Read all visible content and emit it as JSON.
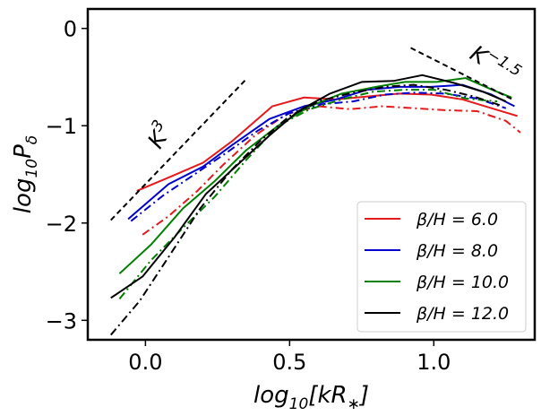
{
  "chart_data": {
    "type": "line",
    "title": "",
    "xlabel": "log10[kR*]",
    "ylabel": "log10Pδ",
    "xlim": [
      -0.2,
      1.35
    ],
    "ylim": [
      -3.2,
      0.2
    ],
    "xticks": [
      0.0,
      0.5,
      1.0
    ],
    "xtick_labels": [
      "0.0",
      "0.5",
      "1.0"
    ],
    "yticks": [
      0,
      -1,
      -2,
      -3
    ],
    "ytick_labels": [
      "0",
      "−1",
      "−2",
      "−3"
    ],
    "grid": false,
    "legend_position": "lower-right",
    "legend": [
      {
        "label": "β/H = 6.0",
        "color": "#e41a1c"
      },
      {
        "label": "β/H = 8.0",
        "color": "#0000cc"
      },
      {
        "label": "β/H = 10.0",
        "color": "#007f00"
      },
      {
        "label": "β/H = 12.0",
        "color": "#000000"
      }
    ],
    "annotations": [
      {
        "text": "K",
        "superscript": "3",
        "x": 0.05,
        "y": -1.25
      },
      {
        "text": "K",
        "superscript": "−1.5",
        "x": 1.12,
        "y": -0.3
      }
    ],
    "reference_lines": [
      {
        "name": "K^3",
        "style": "dashed",
        "color": "#000000",
        "x": [
          -0.12,
          0.35
        ],
        "y": [
          -1.97,
          -0.52
        ]
      },
      {
        "name": "K^-1.5",
        "style": "dashed",
        "color": "#000000",
        "x": [
          0.92,
          1.28
        ],
        "y": [
          -0.2,
          -0.74
        ]
      }
    ],
    "series": [
      {
        "name": "β/H = 6.0",
        "style": "solid",
        "color": "#e41a1c",
        "x": [
          -0.03,
          0.09,
          0.2,
          0.3,
          0.44,
          0.55,
          0.66,
          0.77,
          0.88,
          0.99,
          1.1,
          1.2,
          1.29
        ],
        "y": [
          -1.67,
          -1.52,
          -1.38,
          -1.16,
          -0.8,
          -0.71,
          -0.73,
          -0.7,
          -0.67,
          -0.68,
          -0.73,
          -0.82,
          -0.9
        ]
      },
      {
        "name": "β/H = 6.0 (alt)",
        "style": "dashdot",
        "color": "#e41a1c",
        "x": [
          -0.01,
          0.08,
          0.18,
          0.27,
          0.38,
          0.49,
          0.6,
          0.71,
          0.82,
          0.93,
          1.04,
          1.15,
          1.25,
          1.3
        ],
        "y": [
          -2.12,
          -1.93,
          -1.67,
          -1.4,
          -1.1,
          -0.88,
          -0.8,
          -0.83,
          -0.8,
          -0.82,
          -0.84,
          -0.85,
          -0.95,
          -1.07
        ]
      },
      {
        "name": "β/H = 8.0",
        "style": "solid",
        "color": "#0000cc",
        "x": [
          -0.06,
          0.08,
          0.2,
          0.3,
          0.43,
          0.55,
          0.66,
          0.77,
          0.88,
          0.99,
          1.1,
          1.2,
          1.28
        ],
        "y": [
          -1.96,
          -1.6,
          -1.42,
          -1.2,
          -0.93,
          -0.8,
          -0.73,
          -0.63,
          -0.6,
          -0.6,
          -0.58,
          -0.68,
          -0.8
        ]
      },
      {
        "name": "β/H = 8.0 (alt)",
        "style": "dashdot",
        "color": "#0000cc",
        "x": [
          -0.05,
          0.06,
          0.17,
          0.28,
          0.39,
          0.5,
          0.61,
          0.72,
          0.83,
          0.93,
          1.04,
          1.15,
          1.25
        ],
        "y": [
          -1.98,
          -1.72,
          -1.5,
          -1.28,
          -1.05,
          -0.87,
          -0.78,
          -0.75,
          -0.68,
          -0.66,
          -0.67,
          -0.72,
          -0.82
        ]
      },
      {
        "name": "β/H = 10.0",
        "style": "solid",
        "color": "#007f00",
        "x": [
          -0.09,
          0.02,
          0.13,
          0.24,
          0.35,
          0.46,
          0.57,
          0.68,
          0.8,
          0.9,
          1.01,
          1.11,
          1.21,
          1.27
        ],
        "y": [
          -2.52,
          -2.22,
          -1.85,
          -1.57,
          -1.25,
          -1.0,
          -0.8,
          -0.67,
          -0.6,
          -0.55,
          -0.55,
          -0.51,
          -0.64,
          -0.71
        ]
      },
      {
        "name": "β/H = 10.0 (alt)",
        "style": "dashdot",
        "color": "#007f00",
        "x": [
          -0.09,
          0.02,
          0.13,
          0.24,
          0.35,
          0.46,
          0.57,
          0.68,
          0.79,
          0.9,
          1.0,
          1.11,
          1.22
        ],
        "y": [
          -2.78,
          -2.38,
          -2.05,
          -1.73,
          -1.35,
          -1.0,
          -0.83,
          -0.73,
          -0.65,
          -0.63,
          -0.63,
          -0.72,
          -0.75
        ]
      },
      {
        "name": "β/H = 12.0",
        "style": "solid",
        "color": "#000000",
        "x": [
          -0.12,
          -0.01,
          0.1,
          0.21,
          0.32,
          0.43,
          0.53,
          0.64,
          0.75,
          0.86,
          0.96,
          1.07,
          1.17,
          1.25
        ],
        "y": [
          -2.77,
          -2.55,
          -2.15,
          -1.7,
          -1.4,
          -1.1,
          -0.85,
          -0.67,
          -0.55,
          -0.54,
          -0.48,
          -0.56,
          -0.65,
          -0.75
        ]
      },
      {
        "name": "β/H = 12.0 (alt)",
        "style": "dashdot",
        "color": "#000000",
        "x": [
          -0.12,
          -0.02,
          0.08,
          0.19,
          0.3,
          0.4,
          0.5,
          0.61,
          0.72,
          0.83,
          0.93,
          1.04,
          1.14,
          1.24
        ],
        "y": [
          -3.15,
          -2.8,
          -2.35,
          -1.85,
          -1.45,
          -1.15,
          -0.9,
          -0.74,
          -0.66,
          -0.6,
          -0.58,
          -0.63,
          -0.7,
          -0.8
        ]
      }
    ]
  }
}
